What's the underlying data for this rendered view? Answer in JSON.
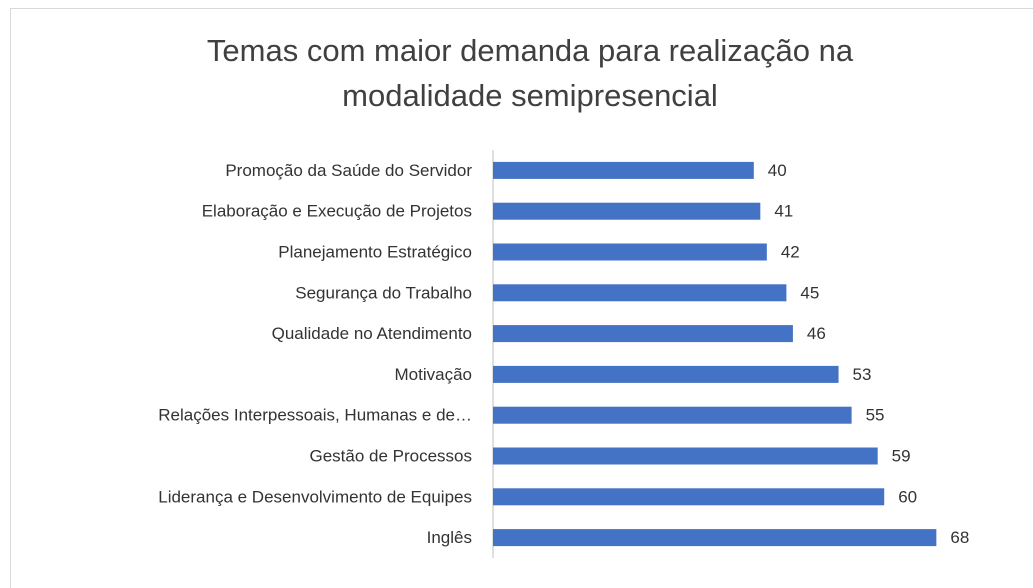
{
  "chart_data": {
    "type": "bar",
    "orientation": "horizontal",
    "title": "Temas com maior demanda para realização na modalidade semipresencial",
    "categories": [
      "Promoção da Saúde do Servidor",
      "Elaboração e Execução de Projetos",
      "Planejamento Estratégico",
      "Segurança do Trabalho",
      "Qualidade no Atendimento",
      "Motivação",
      "Relações Interpessoais, Humanas e de…",
      "Gestão de Processos",
      "Liderança e Desenvolvimento de Equipes",
      "Inglês"
    ],
    "values": [
      40,
      41,
      42,
      45,
      46,
      53,
      55,
      59,
      60,
      68
    ],
    "color": "#4472c4"
  }
}
